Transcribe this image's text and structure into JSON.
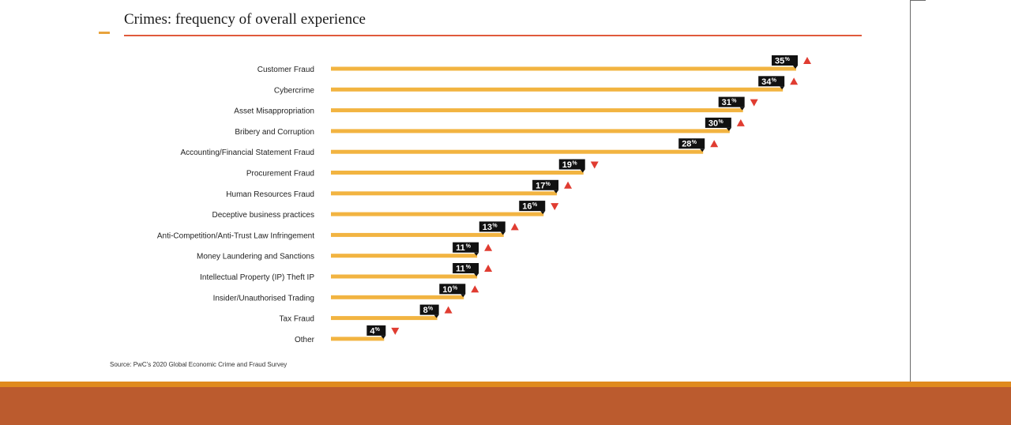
{
  "chart_data": {
    "type": "bar",
    "orientation": "horizontal",
    "title": "Crimes: frequency of overall experience",
    "source": "Source: PwC's 2020 Global Economic Crime and Fraud Survey",
    "unit": "%",
    "categories": [
      "Customer Fraud",
      "Cybercrime",
      "Asset Misappropriation",
      "Bribery and Corruption",
      "Accounting/Financial Statement Fraud",
      "Procurement Fraud",
      "Human Resources Fraud",
      "Deceptive business practices",
      "Anti-Competition/Anti-Trust Law Infringement",
      "Money Laundering and Sanctions",
      "Intellectual Property (IP) Theft IP",
      "Insider/Unauthorised Trading",
      "Tax Fraud",
      "Other"
    ],
    "values": [
      35,
      34,
      31,
      30,
      28,
      19,
      17,
      16,
      13,
      11,
      11,
      10,
      8,
      4
    ],
    "trend": [
      "up",
      "up",
      "down",
      "up",
      "up",
      "down",
      "up",
      "down",
      "up",
      "up",
      "up",
      "up",
      "up",
      "down"
    ],
    "xlim": [
      0,
      35
    ],
    "grid": false,
    "legend": "none"
  },
  "colors": {
    "bar": "#f2b441",
    "label_box": "#111111",
    "trend_marker": "#e03c31",
    "title_rule": "#e05a3c",
    "footer_stripe": "#e08a1e",
    "footer_band": "#bb5b2e"
  }
}
